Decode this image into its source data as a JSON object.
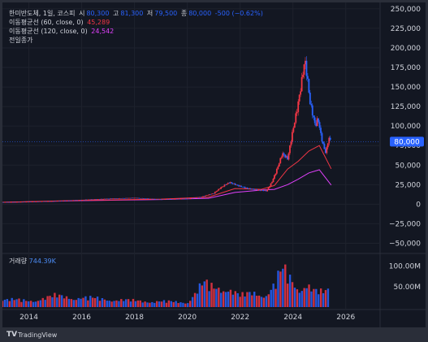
{
  "legend": {
    "ticker": "한미반도체, 1일, 코스피",
    "open_label": "시",
    "open": "80,300",
    "high_label": "고",
    "high": "81,300",
    "low_label": "저",
    "low": "79,500",
    "close_label": "종",
    "close": "80,000",
    "change": "-500 (−0.62%)",
    "ma60_label": "이동평균선 (60, close, 0)",
    "ma60_value": "45,289",
    "ma120_label": "이동평균선 (120, close, 0)",
    "ma120_value": "24,542",
    "prev_close_label": "전일종가"
  },
  "volume": {
    "label": "거래량",
    "value": "744.39K"
  },
  "footer": {
    "logo": "TV",
    "brand": "TradingView"
  },
  "colors": {
    "up": "#f23645",
    "down": "#2962ff",
    "ma60": "#f23645",
    "ma120": "#e040fb",
    "price_line": "#2962ff"
  },
  "chart_data": {
    "type": "candlestick",
    "x_ticks": [
      "2014",
      "2016",
      "2018",
      "2020",
      "2022",
      "2024",
      "2026"
    ],
    "price_ticks": [
      "250,000",
      "225,000",
      "200,000",
      "175,000",
      "150,000",
      "125,000",
      "100,000",
      "75,000",
      "50,000",
      "25,000",
      "0",
      "−25,000",
      "−50,000"
    ],
    "volume_ticks": [
      "100.00M",
      "50.00M"
    ],
    "last_price_label": "80,000",
    "last_price": 80000,
    "price_range": [
      -62000,
      253000
    ],
    "volume_range": [
      0,
      125
    ],
    "series": [
      {
        "name": "price",
        "x": [
          2013.0,
          2014.0,
          2015.0,
          2016.0,
          2017.0,
          2018.0,
          2019.0,
          2020.0,
          2020.5,
          2021.0,
          2021.3,
          2021.6,
          2021.9,
          2022.3,
          2022.7,
          2023.0,
          2023.2,
          2023.4,
          2023.6,
          2023.8,
          2024.0,
          2024.15,
          2024.3,
          2024.45,
          2024.55,
          2024.65,
          2024.75,
          2024.85,
          2024.95,
          2025.05,
          2025.15,
          2025.25,
          2025.35,
          2025.45
        ],
        "values": [
          2500,
          3000,
          4000,
          5500,
          7000,
          8000,
          6000,
          7000,
          9000,
          14000,
          22000,
          28000,
          24000,
          20000,
          18000,
          17000,
          28000,
          45000,
          65000,
          58000,
          95000,
          120000,
          150000,
          185000,
          160000,
          130000,
          115000,
          100000,
          110000,
          90000,
          75000,
          65000,
          85000,
          80000
        ]
      },
      {
        "name": "이동평균선 (60, close, 0)",
        "x": [
          2013.0,
          2016.0,
          2019.0,
          2020.8,
          2021.8,
          2022.8,
          2023.3,
          2023.8,
          2024.2,
          2024.6,
          2025.0,
          2025.45
        ],
        "values": [
          2500,
          5000,
          6500,
          9000,
          20000,
          19000,
          24000,
          45000,
          55000,
          68000,
          75000,
          45289
        ]
      },
      {
        "name": "이동평균선 (120, close, 0)",
        "x": [
          2013.0,
          2016.0,
          2019.0,
          2020.8,
          2021.8,
          2022.8,
          2023.3,
          2023.8,
          2024.2,
          2024.6,
          2025.0,
          2025.45
        ],
        "values": [
          2500,
          4500,
          6000,
          7500,
          15000,
          18000,
          19000,
          25000,
          32000,
          40000,
          44000,
          24542
        ]
      },
      {
        "name": "volume",
        "x": [
          2013.0,
          2014.0,
          2015.0,
          2016.0,
          2017.0,
          2018.0,
          2019.0,
          2020.0,
          2020.6,
          2021.0,
          2021.5,
          2022.0,
          2022.5,
          2023.0,
          2023.3,
          2023.6,
          2023.9,
          2024.2,
          2024.5,
          2024.8,
          2025.1,
          2025.4
        ],
        "values": [
          25,
          20,
          35,
          30,
          25,
          20,
          18,
          15,
          75,
          60,
          65,
          35,
          45,
          40,
          70,
          118,
          90,
          60,
          75,
          50,
          45,
          55
        ]
      }
    ]
  }
}
